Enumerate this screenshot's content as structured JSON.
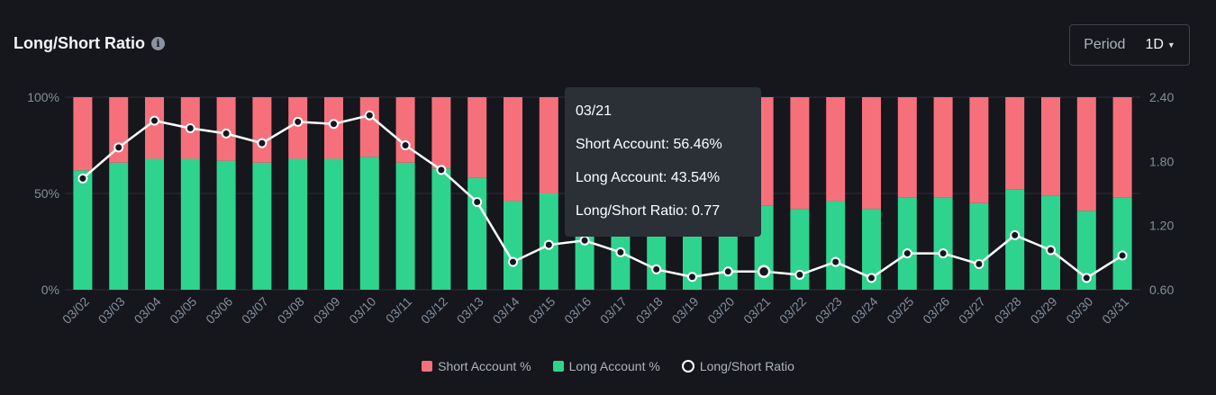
{
  "header": {
    "title": "Long/Short Ratio",
    "info_icon": "info-icon",
    "period_label": "Period",
    "period_value": "1D"
  },
  "legend": {
    "short": "Short Account %",
    "long": "Long Account %",
    "ratio": "Long/Short Ratio"
  },
  "tooltip": {
    "date": "03/21",
    "short": "Short Account: 56.46%",
    "long": "Long Account: 43.54%",
    "ratio": "Long/Short Ratio: 0.77"
  },
  "colors": {
    "short": "#f6707c",
    "long": "#2ed48e",
    "line": "#ffffff",
    "axis_text": "#848e9c",
    "grid": "#2b2f36"
  },
  "chart_data": {
    "type": "bar",
    "stacked": true,
    "categories": [
      "03/02",
      "03/03",
      "03/04",
      "03/05",
      "03/06",
      "03/07",
      "03/08",
      "03/09",
      "03/10",
      "03/11",
      "03/12",
      "03/13",
      "03/14",
      "03/15",
      "03/16",
      "03/17",
      "03/18",
      "03/19",
      "03/20",
      "03/21",
      "03/22",
      "03/23",
      "03/24",
      "03/25",
      "03/26",
      "03/27",
      "03/28",
      "03/29",
      "03/30",
      "03/31"
    ],
    "series": [
      {
        "name": "Long Account %",
        "axis": "left",
        "type": "bar",
        "values": [
          62,
          66,
          68,
          68,
          67,
          66,
          68,
          68,
          69,
          66,
          63,
          58,
          46,
          50,
          51,
          49,
          44,
          42,
          44,
          43.54,
          42,
          46,
          42,
          48,
          48,
          45,
          52,
          49,
          41,
          48
        ]
      },
      {
        "name": "Short Account %",
        "axis": "left",
        "type": "bar",
        "values": [
          38,
          34,
          32,
          32,
          33,
          34,
          32,
          32,
          31,
          34,
          37,
          42,
          54,
          50,
          49,
          51,
          56,
          58,
          56,
          56.46,
          58,
          54,
          58,
          52,
          52,
          55,
          48,
          51,
          59,
          52
        ]
      },
      {
        "name": "Long/Short Ratio",
        "axis": "right",
        "type": "line",
        "values": [
          1.64,
          1.93,
          2.18,
          2.11,
          2.06,
          1.97,
          2.17,
          2.15,
          2.23,
          1.95,
          1.72,
          1.42,
          0.86,
          1.02,
          1.06,
          0.95,
          0.79,
          0.72,
          0.77,
          0.77,
          0.74,
          0.86,
          0.71,
          0.94,
          0.94,
          0.84,
          1.11,
          0.97,
          0.71,
          0.92
        ]
      }
    ],
    "y_left": {
      "ticks": [
        "0%",
        "50%",
        "100%"
      ],
      "ylim": [
        0,
        100
      ]
    },
    "y_right": {
      "ticks": [
        "0.60",
        "1.20",
        "1.80",
        "2.40"
      ],
      "ylim": [
        0.6,
        2.4
      ]
    },
    "highlight_index": 19,
    "grid": true,
    "legend_position": "bottom-center"
  }
}
